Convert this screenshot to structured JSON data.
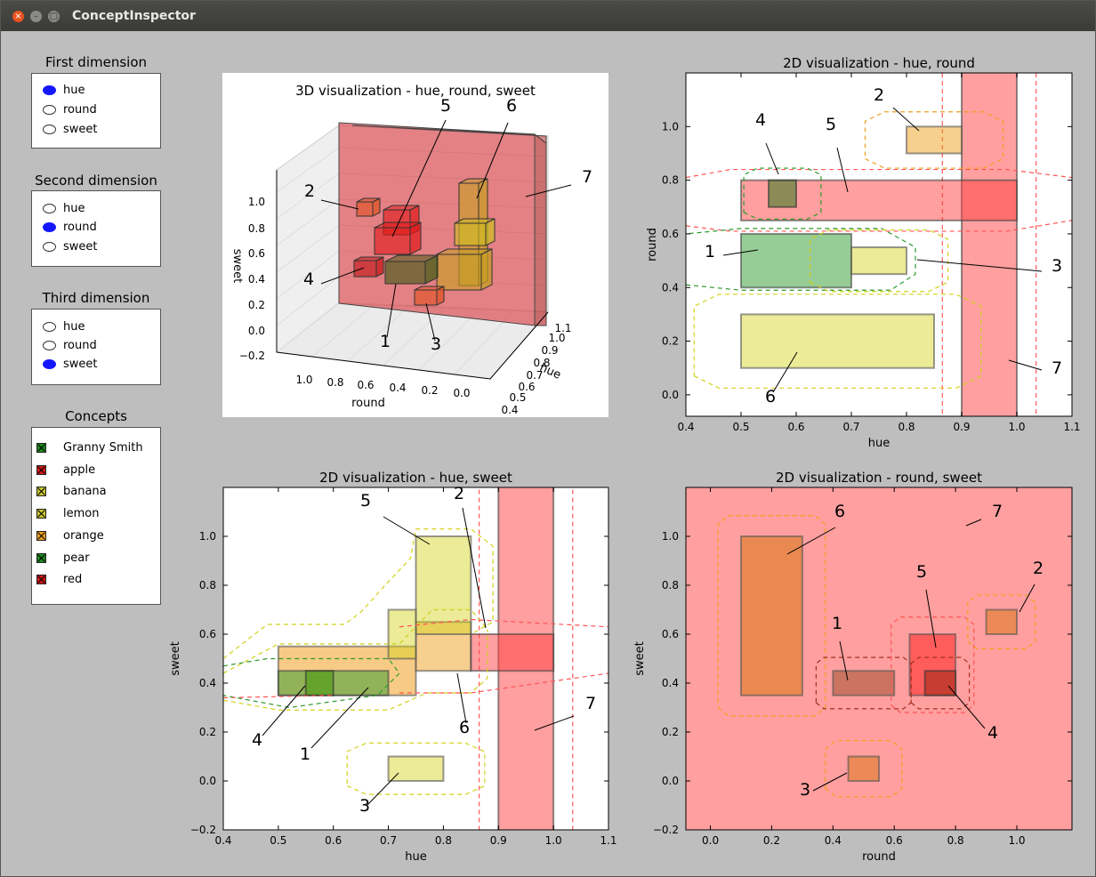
{
  "window": {
    "title": "ConceptInspector"
  },
  "first_dimension": {
    "title": "First dimension",
    "options": [
      "hue",
      "round",
      "sweet"
    ],
    "selected": "hue"
  },
  "second_dimension": {
    "title": "Second dimension",
    "options": [
      "hue",
      "round",
      "sweet"
    ],
    "selected": "round"
  },
  "third_dimension": {
    "title": "Third dimension",
    "options": [
      "hue",
      "round",
      "sweet"
    ],
    "selected": "sweet"
  },
  "concepts": {
    "title": "Concepts",
    "items": [
      {
        "label": "Granny Smith",
        "color": "#1f8a1f"
      },
      {
        "label": "apple",
        "color": "#d11a1a"
      },
      {
        "label": "banana",
        "color": "#c9c72a"
      },
      {
        "label": "lemon",
        "color": "#c9c72a"
      },
      {
        "label": "orange",
        "color": "#f0a020"
      },
      {
        "label": "pear",
        "color": "#1f8a1f"
      },
      {
        "label": "red",
        "color": "#d11a1a"
      }
    ]
  },
  "plots": {
    "p3d": {
      "title": "3D visualization - hue, round, sweet",
      "round_ticks": [
        "1.0",
        "0.8",
        "0.6",
        "0.4",
        "0.2",
        "0.0"
      ],
      "hue_ticks": [
        "1.1",
        "1.0",
        "0.9",
        "0.8",
        "0.7",
        "0.6",
        "0.5",
        "0.4"
      ],
      "sweet_ticks": [
        "1.0",
        "0.8",
        "0.6",
        "0.4",
        "0.2",
        "0.0",
        "−0.2"
      ],
      "xlabel": "round",
      "ylabel": "hue",
      "zlabel": "sweet",
      "labels": [
        "1",
        "2",
        "3",
        "4",
        "5",
        "6",
        "7"
      ]
    },
    "hue_round": {
      "title": "2D visualization - hue, round",
      "xlabel": "hue",
      "ylabel": "round",
      "xticks": [
        "0.4",
        "0.5",
        "0.6",
        "0.7",
        "0.8",
        "0.9",
        "1.0",
        "1.1"
      ],
      "yticks": [
        "0.0",
        "0.2",
        "0.4",
        "0.6",
        "0.8",
        "1.0"
      ],
      "labels": [
        "1",
        "2",
        "3",
        "4",
        "5",
        "6",
        "7"
      ]
    },
    "hue_sweet": {
      "title": "2D visualization - hue, sweet",
      "xlabel": "hue",
      "ylabel": "sweet",
      "xticks": [
        "0.4",
        "0.5",
        "0.6",
        "0.7",
        "0.8",
        "0.9",
        "1.0",
        "1.1"
      ],
      "yticks": [
        "−0.2",
        "0.0",
        "0.2",
        "0.4",
        "0.6",
        "0.8",
        "1.0"
      ],
      "labels": [
        "1",
        "2",
        "3",
        "4",
        "5",
        "6",
        "7"
      ]
    },
    "round_sweet": {
      "title": "2D visualization - round, sweet",
      "xlabel": "round",
      "ylabel": "sweet",
      "xticks": [
        "0.0",
        "0.2",
        "0.4",
        "0.6",
        "0.8",
        "1.0"
      ],
      "yticks": [
        "−0.2",
        "0.0",
        "0.2",
        "0.4",
        "0.6",
        "0.8",
        "1.0"
      ],
      "labels": [
        "1",
        "2",
        "3",
        "4",
        "5",
        "6",
        "7"
      ]
    }
  }
}
